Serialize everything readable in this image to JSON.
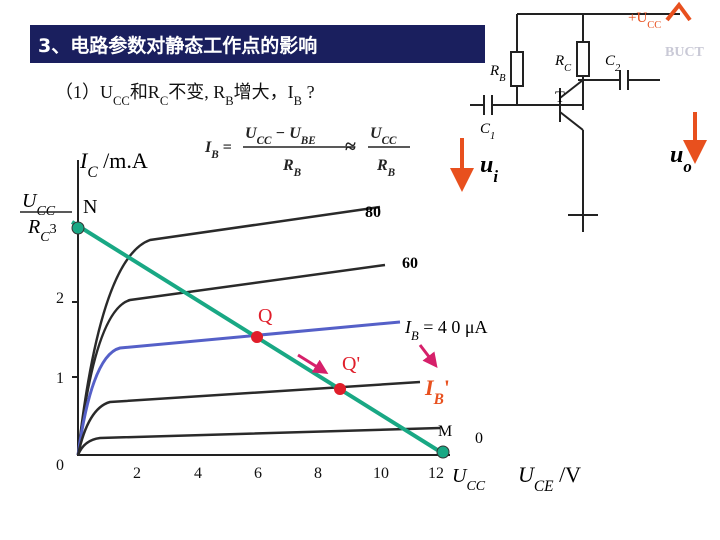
{
  "title": "3、电路参数对静态工作点的影响",
  "question": [
    "（1）U",
    "CC",
    "和R",
    "C",
    "不变, R",
    "B",
    "增大，I",
    "B",
    " ?"
  ],
  "formula": {
    "lhs": [
      "I",
      "B",
      " ="
    ],
    "frac1_num": [
      "U",
      "CC",
      " − U",
      "BE"
    ],
    "frac1_den": [
      "R",
      "B"
    ],
    "approx": "≈",
    "frac2_num": [
      "U",
      "CC"
    ],
    "frac2_den": [
      "R",
      "B"
    ]
  },
  "circuit": {
    "supply": [
      "+U",
      "CC"
    ],
    "rb": [
      "R",
      "B"
    ],
    "rc": [
      "R",
      "C"
    ],
    "c2": [
      "C",
      "2"
    ],
    "transistor": "T",
    "c1": [
      "C",
      "1"
    ],
    "ui": [
      "u",
      "i"
    ],
    "uo": [
      "u",
      "o"
    ],
    "watermark": "BUCT"
  },
  "graph": {
    "y_label": [
      "I",
      "C",
      " /m.A"
    ],
    "y_ticks": [
      "1",
      "2"
    ],
    "ucc_over_rc": {
      "num": [
        "U",
        "CC"
      ],
      "den": [
        "R",
        "C"
      ],
      "value": "3"
    },
    "x_ticks": [
      "0",
      "2",
      "4",
      "6",
      "8",
      "10",
      "12"
    ],
    "x_ucc": [
      "U",
      "CC"
    ],
    "x_label": [
      "U",
      "CE",
      " /V"
    ],
    "curve_labels": [
      "80",
      "60"
    ],
    "ib_label": [
      "I",
      "B",
      " = 4 0 μA"
    ],
    "ib_prime": [
      "I",
      "B",
      "'"
    ],
    "points": {
      "n": "N",
      "q": "Q",
      "q_prime": "Q'",
      "m": "M",
      "m_zero": "0"
    }
  }
}
